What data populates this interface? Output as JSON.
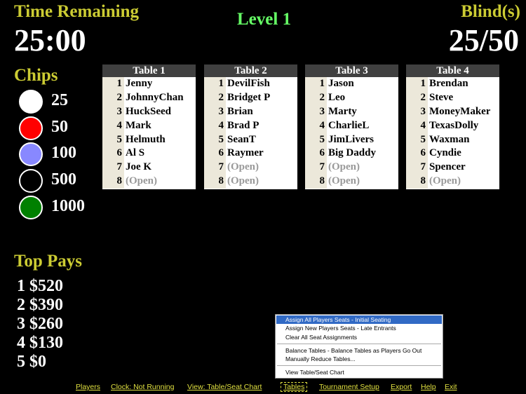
{
  "header": {
    "time_label": "Time Remaining",
    "time_value": "25:00",
    "level": "Level 1",
    "blind_label": "Blind(s)",
    "blind_value": "25/50"
  },
  "chips": {
    "title": "Chips",
    "items": [
      {
        "value": "25",
        "color": "#ffffff"
      },
      {
        "value": "50",
        "color": "#ff0000"
      },
      {
        "value": "100",
        "color": "#8888ff"
      },
      {
        "value": "500",
        "color": "#000000"
      },
      {
        "value": "1000",
        "color": "#008000"
      }
    ]
  },
  "pays": {
    "title": "Top Pays",
    "items": [
      "1 $520",
      "2 $390",
      "3 $260",
      "4 $130",
      "5 $0"
    ]
  },
  "tables": [
    {
      "name": "Table 1",
      "seats": [
        [
          "1",
          "Jenny"
        ],
        [
          "2",
          "JohnnyChan"
        ],
        [
          "3",
          "HuckSeed"
        ],
        [
          "4",
          "Mark"
        ],
        [
          "5",
          "Helmuth"
        ],
        [
          "6",
          "Al S"
        ],
        [
          "7",
          "Joe K"
        ],
        [
          "8",
          "(Open)"
        ]
      ]
    },
    {
      "name": "Table 2",
      "seats": [
        [
          "1",
          "DevilFish"
        ],
        [
          "2",
          "Bridget P"
        ],
        [
          "3",
          "Brian"
        ],
        [
          "4",
          "Brad P"
        ],
        [
          "5",
          "SeanT"
        ],
        [
          "6",
          "Raymer"
        ],
        [
          "7",
          "(Open)"
        ],
        [
          "8",
          "(Open)"
        ]
      ]
    },
    {
      "name": "Table 3",
      "seats": [
        [
          "1",
          "Jason"
        ],
        [
          "2",
          "Leo"
        ],
        [
          "3",
          "Marty"
        ],
        [
          "4",
          "CharlieL"
        ],
        [
          "5",
          "JimLivers"
        ],
        [
          "6",
          "Big Daddy"
        ],
        [
          "7",
          "(Open)"
        ],
        [
          "8",
          "(Open)"
        ]
      ]
    },
    {
      "name": "Table 4",
      "seats": [
        [
          "1",
          "Brendan"
        ],
        [
          "2",
          "Steve"
        ],
        [
          "3",
          "MoneyMaker"
        ],
        [
          "4",
          "TexasDolly"
        ],
        [
          "5",
          "Waxman"
        ],
        [
          "6",
          "Cyndie"
        ],
        [
          "7",
          "Spencer"
        ],
        [
          "8",
          "(Open)"
        ]
      ]
    }
  ],
  "menu": {
    "items": [
      "Assign All Players Seats - Initial Seating",
      "Assign New Players Seats - Late Entrants",
      "Clear All Seat Assignments",
      "Balance Tables - Balance Tables as Players Go Out",
      "Manually Reduce Tables...",
      "View Table/Seat Chart"
    ]
  },
  "menubar": [
    "Players",
    "Clock: Not Running",
    "View: Table/Seat Chart",
    "Tables",
    "Tournament Setup",
    "Export",
    "Help",
    "Exit"
  ],
  "colors": {
    "accent_yellow": "#cccc33",
    "level_green": "#66ff66",
    "menu_highlight": "#316ac5"
  }
}
